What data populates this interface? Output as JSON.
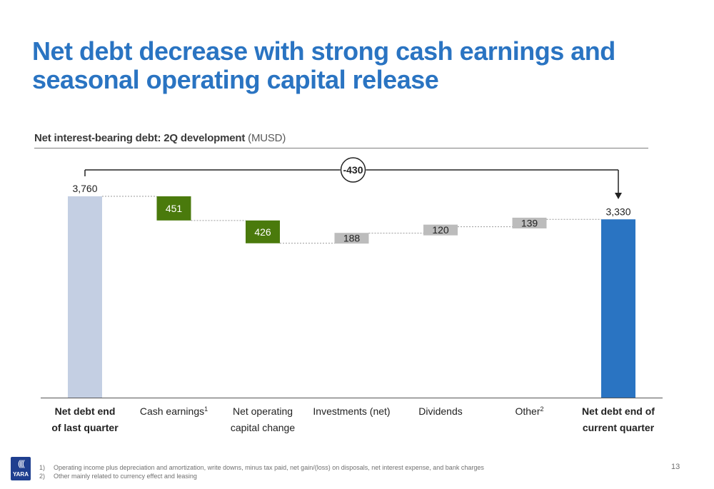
{
  "slide": {
    "title": "Net debt decrease with strong cash earnings and seasonal operating capital release",
    "subtitle_bold": "Net interest-bearing debt: 2Q development",
    "subtitle_unit": "(MUSD)",
    "page_number": "13",
    "logo_text": "YARA",
    "logo_mark": "((((",
    "footnotes": [
      {
        "num": "1)",
        "text": "Operating income plus depreciation and amortization, write downs, minus tax paid, net gain/(loss) on disposals, net interest expense, and bank charges"
      },
      {
        "num": "2)",
        "text": "Other mainly related to currency effect and leasing"
      }
    ]
  },
  "colors": {
    "title": "#2a74c2",
    "start_bar": "#c4cfe3",
    "decrease_bar": "#4a7a0c",
    "increase_bar": "#bcbcbc",
    "end_bar": "#2a74c2"
  },
  "chart_data": {
    "type": "waterfall",
    "title": "Net interest-bearing debt: 2Q development",
    "unit": "MUSD",
    "ylim": [
      0,
      3760
    ],
    "total_change_label": "-430",
    "steps": [
      {
        "label": "Net debt end of last quarter",
        "lines": [
          "Net debt end",
          "of last quarter"
        ],
        "sup": "",
        "bold": true,
        "kind": "total",
        "value": 3760,
        "value_label": "3,760"
      },
      {
        "label": "Cash earnings",
        "lines": [
          "Cash earnings"
        ],
        "sup": "1",
        "bold": false,
        "kind": "decrease",
        "value": 451,
        "value_label": "451"
      },
      {
        "label": "Net operating capital change",
        "lines": [
          "Net operating",
          "capital change"
        ],
        "sup": "",
        "bold": false,
        "kind": "decrease",
        "value": 426,
        "value_label": "426"
      },
      {
        "label": "Investments (net)",
        "lines": [
          "Investments (net)"
        ],
        "sup": "",
        "bold": false,
        "kind": "increase",
        "value": 188,
        "value_label": "188"
      },
      {
        "label": "Dividends",
        "lines": [
          "Dividends"
        ],
        "sup": "",
        "bold": false,
        "kind": "increase",
        "value": 120,
        "value_label": "120"
      },
      {
        "label": "Other",
        "lines": [
          "Other"
        ],
        "sup": "2",
        "bold": false,
        "kind": "increase",
        "value": 139,
        "value_label": "139"
      },
      {
        "label": "Net debt end of current quarter",
        "lines": [
          "Net debt end of",
          "current quarter"
        ],
        "sup": "",
        "bold": true,
        "kind": "total",
        "value": 3330,
        "value_label": "3,330"
      }
    ]
  }
}
